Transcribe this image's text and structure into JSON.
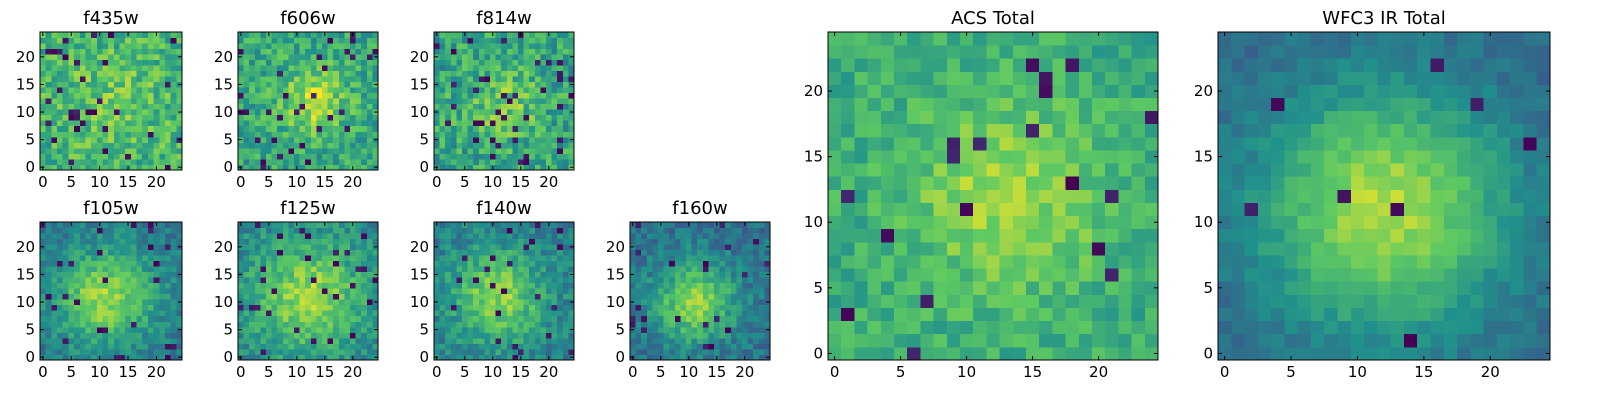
{
  "figure": {
    "background": "#ffffff"
  },
  "colormap": {
    "name": "viridis",
    "stops": [
      "#440154",
      "#3b528b",
      "#21918c",
      "#5ec962",
      "#fde725"
    ]
  },
  "chart_data": [
    {
      "type": "heatmap",
      "title": "f435w",
      "size": 25,
      "xticks": [
        "0",
        "5",
        "10",
        "15",
        "20"
      ],
      "yticks": [
        "0",
        "5",
        "10",
        "15",
        "20"
      ],
      "xlim": [
        -0.5,
        24.5
      ],
      "ylim": [
        -0.5,
        24.5
      ],
      "value_range": [
        0,
        1
      ],
      "pattern": {
        "seed": 11,
        "peak": [
          12,
          12
        ],
        "sigma": 9,
        "amp": 0.12,
        "base": 0.62,
        "noise": 0.34,
        "dark_prob": 0.05
      }
    },
    {
      "type": "heatmap",
      "title": "f606w",
      "size": 25,
      "xticks": [
        "0",
        "5",
        "10",
        "15",
        "20"
      ],
      "yticks": [
        "0",
        "5",
        "10",
        "15",
        "20"
      ],
      "xlim": [
        -0.5,
        24.5
      ],
      "ylim": [
        -0.5,
        24.5
      ],
      "value_range": [
        0,
        1
      ],
      "pattern": {
        "seed": 23,
        "peak": [
          13,
          12
        ],
        "sigma": 4,
        "amp": 0.3,
        "base": 0.6,
        "noise": 0.32,
        "dark_prob": 0.05
      }
    },
    {
      "type": "heatmap",
      "title": "f814w",
      "size": 25,
      "xticks": [
        "0",
        "5",
        "10",
        "15",
        "20"
      ],
      "yticks": [
        "0",
        "5",
        "10",
        "15",
        "20"
      ],
      "xlim": [
        -0.5,
        24.5
      ],
      "ylim": [
        -0.5,
        24.5
      ],
      "value_range": [
        0,
        1
      ],
      "pattern": {
        "seed": 37,
        "peak": [
          12,
          11
        ],
        "sigma": 5,
        "amp": 0.18,
        "base": 0.58,
        "noise": 0.36,
        "dark_prob": 0.06
      }
    },
    {
      "type": "heatmap",
      "title": "f105w",
      "size": 25,
      "xticks": [
        "0",
        "5",
        "10",
        "15",
        "20"
      ],
      "yticks": [
        "0",
        "5",
        "10",
        "15",
        "20"
      ],
      "xlim": [
        -0.5,
        24.5
      ],
      "ylim": [
        -0.5,
        24.5
      ],
      "value_range": [
        0,
        1
      ],
      "pattern": {
        "seed": 41,
        "peak": [
          11,
          11
        ],
        "sigma": 6,
        "amp": 0.45,
        "base": 0.4,
        "noise": 0.22,
        "dark_prob": 0.04
      }
    },
    {
      "type": "heatmap",
      "title": "f125w",
      "size": 25,
      "xticks": [
        "0",
        "5",
        "10",
        "15",
        "20"
      ],
      "yticks": [
        "0",
        "5",
        "10",
        "15",
        "20"
      ],
      "xlim": [
        -0.5,
        24.5
      ],
      "ylim": [
        -0.5,
        24.5
      ],
      "value_range": [
        0,
        1
      ],
      "pattern": {
        "seed": 53,
        "peak": [
          12,
          11
        ],
        "sigma": 7,
        "amp": 0.4,
        "base": 0.45,
        "noise": 0.24,
        "dark_prob": 0.04
      }
    },
    {
      "type": "heatmap",
      "title": "f140w",
      "size": 25,
      "xticks": [
        "0",
        "5",
        "10",
        "15",
        "20"
      ],
      "yticks": [
        "0",
        "5",
        "10",
        "15",
        "20"
      ],
      "xlim": [
        -0.5,
        24.5
      ],
      "ylim": [
        -0.5,
        24.5
      ],
      "value_range": [
        0,
        1
      ],
      "pattern": {
        "seed": 67,
        "peak": [
          11,
          11
        ],
        "sigma": 6,
        "amp": 0.4,
        "base": 0.42,
        "noise": 0.24,
        "dark_prob": 0.04
      }
    },
    {
      "type": "heatmap",
      "title": "f160w",
      "size": 25,
      "xticks": [
        "0",
        "5",
        "10",
        "15",
        "20"
      ],
      "yticks": [
        "0",
        "5",
        "10",
        "15",
        "20"
      ],
      "xlim": [
        -0.5,
        24.5
      ],
      "ylim": [
        -0.5,
        24.5
      ],
      "value_range": [
        0,
        1
      ],
      "pattern": {
        "seed": 79,
        "peak": [
          11,
          10
        ],
        "sigma": 5,
        "amp": 0.45,
        "base": 0.38,
        "noise": 0.22,
        "dark_prob": 0.05
      }
    },
    {
      "type": "heatmap",
      "title": "ACS Total",
      "size": 25,
      "xticks": [
        "0",
        "5",
        "10",
        "15",
        "20"
      ],
      "yticks": [
        "0",
        "5",
        "10",
        "15",
        "20"
      ],
      "xlim": [
        -0.5,
        24.5
      ],
      "ylim": [
        -0.5,
        24.5
      ],
      "value_range": [
        0,
        1
      ],
      "pattern": {
        "seed": 97,
        "peak": [
          13,
          12
        ],
        "sigma": 5,
        "amp": 0.25,
        "base": 0.62,
        "noise": 0.22,
        "dark_prob": 0.03
      }
    },
    {
      "type": "heatmap",
      "title": "WFC3 IR Total",
      "size": 25,
      "xticks": [
        "0",
        "5",
        "10",
        "15",
        "20"
      ],
      "yticks": [
        "0",
        "5",
        "10",
        "15",
        "20"
      ],
      "xlim": [
        -0.5,
        24.5
      ],
      "ylim": [
        -0.5,
        24.5
      ],
      "value_range": [
        0,
        1
      ],
      "pattern": {
        "seed": 113,
        "peak": [
          12,
          11
        ],
        "sigma": 6.5,
        "amp": 0.55,
        "base": 0.33,
        "noise": 0.12,
        "dark_prob": 0.02
      }
    }
  ]
}
